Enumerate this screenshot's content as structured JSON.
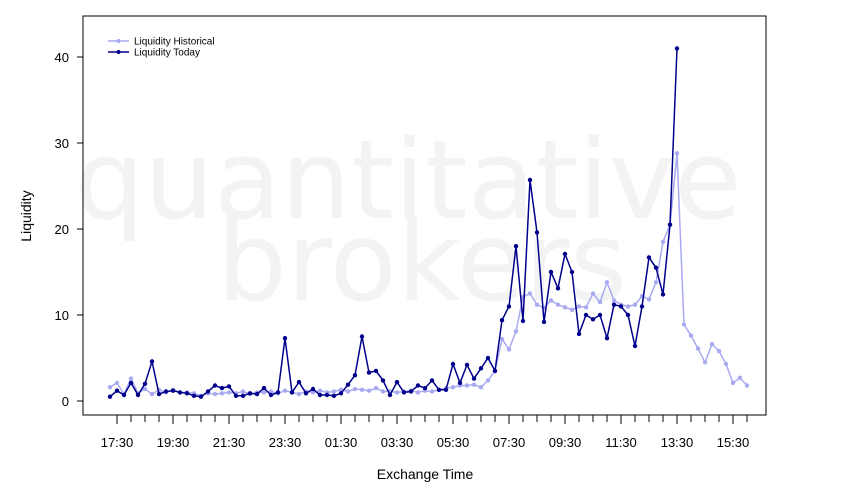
{
  "chart_data": {
    "type": "line",
    "watermark": [
      "quantitative",
      "brokers"
    ],
    "xlabel": "Exchange Time",
    "ylabel": "Liquidity",
    "ylim": [
      -1.5,
      45
    ],
    "yticks": [
      0,
      10,
      20,
      30,
      40
    ],
    "x_tick_labels": [
      "17:30",
      "19:30",
      "21:30",
      "23:30",
      "01:30",
      "03:30",
      "05:30",
      "07:30",
      "09:30",
      "11:30",
      "13:30",
      "15:30"
    ],
    "legend_position": "top-left",
    "series": [
      {
        "name": "Liquidity Historical",
        "color": "#a9a9f2",
        "values": [
          1.6,
          2.1,
          0.8,
          2.6,
          0.9,
          1.4,
          0.8,
          1.3,
          1.0,
          1.3,
          1.0,
          1.0,
          0.9,
          0.6,
          0.9,
          0.8,
          0.9,
          1.0,
          0.9,
          1.1,
          0.8,
          1.0,
          1.0,
          1.1,
          0.9,
          1.2,
          1.0,
          0.8,
          1.1,
          1.0,
          1.2,
          1.0,
          1.1,
          1.3,
          1.1,
          1.4,
          1.3,
          1.2,
          1.5,
          1.1,
          1.1,
          1.0,
          1.1,
          1.2,
          1.0,
          1.2,
          1.1,
          1.3,
          1.5,
          1.6,
          1.8,
          1.8,
          1.9,
          1.6,
          2.4,
          3.5,
          7.2,
          6.0,
          8.1,
          12.1,
          12.5,
          11.2,
          10.8,
          11.7,
          11.2,
          10.9,
          10.6,
          11.0,
          10.9,
          12.5,
          11.5,
          13.8,
          11.7,
          11.2,
          11.0,
          11.2,
          12.2,
          11.8,
          13.8,
          18.5,
          20.5,
          28.8,
          8.9,
          7.6,
          6.1,
          4.5,
          6.6,
          5.8,
          4.3,
          2.1,
          2.7,
          1.8
        ]
      },
      {
        "name": "Liquidity Today",
        "color": "#00008b",
        "values": [
          0.5,
          1.2,
          0.7,
          2.1,
          0.7,
          2.0,
          4.6,
          0.8,
          1.1,
          1.2,
          1.0,
          0.9,
          0.6,
          0.5,
          1.1,
          1.8,
          1.5,
          1.7,
          0.6,
          0.6,
          0.9,
          0.8,
          1.5,
          0.7,
          1.0,
          7.3,
          1.0,
          2.2,
          0.9,
          1.4,
          0.7,
          0.7,
          0.6,
          0.9,
          1.9,
          3.0,
          7.5,
          3.3,
          3.5,
          2.4,
          0.7,
          2.2,
          1.0,
          1.1,
          1.8,
          1.5,
          2.4,
          1.3,
          1.3,
          4.3,
          2.1,
          4.2,
          2.6,
          3.8,
          5.0,
          3.5,
          9.4,
          11.0,
          18.0,
          9.3,
          25.7,
          19.6,
          9.2,
          15.0,
          13.1,
          17.1,
          15.0,
          7.8,
          10.0,
          9.5,
          10.0,
          7.3,
          11.2,
          11.0,
          10.0,
          6.4,
          11.0,
          16.7,
          15.5,
          12.4,
          20.5,
          41.0
        ]
      }
    ]
  }
}
